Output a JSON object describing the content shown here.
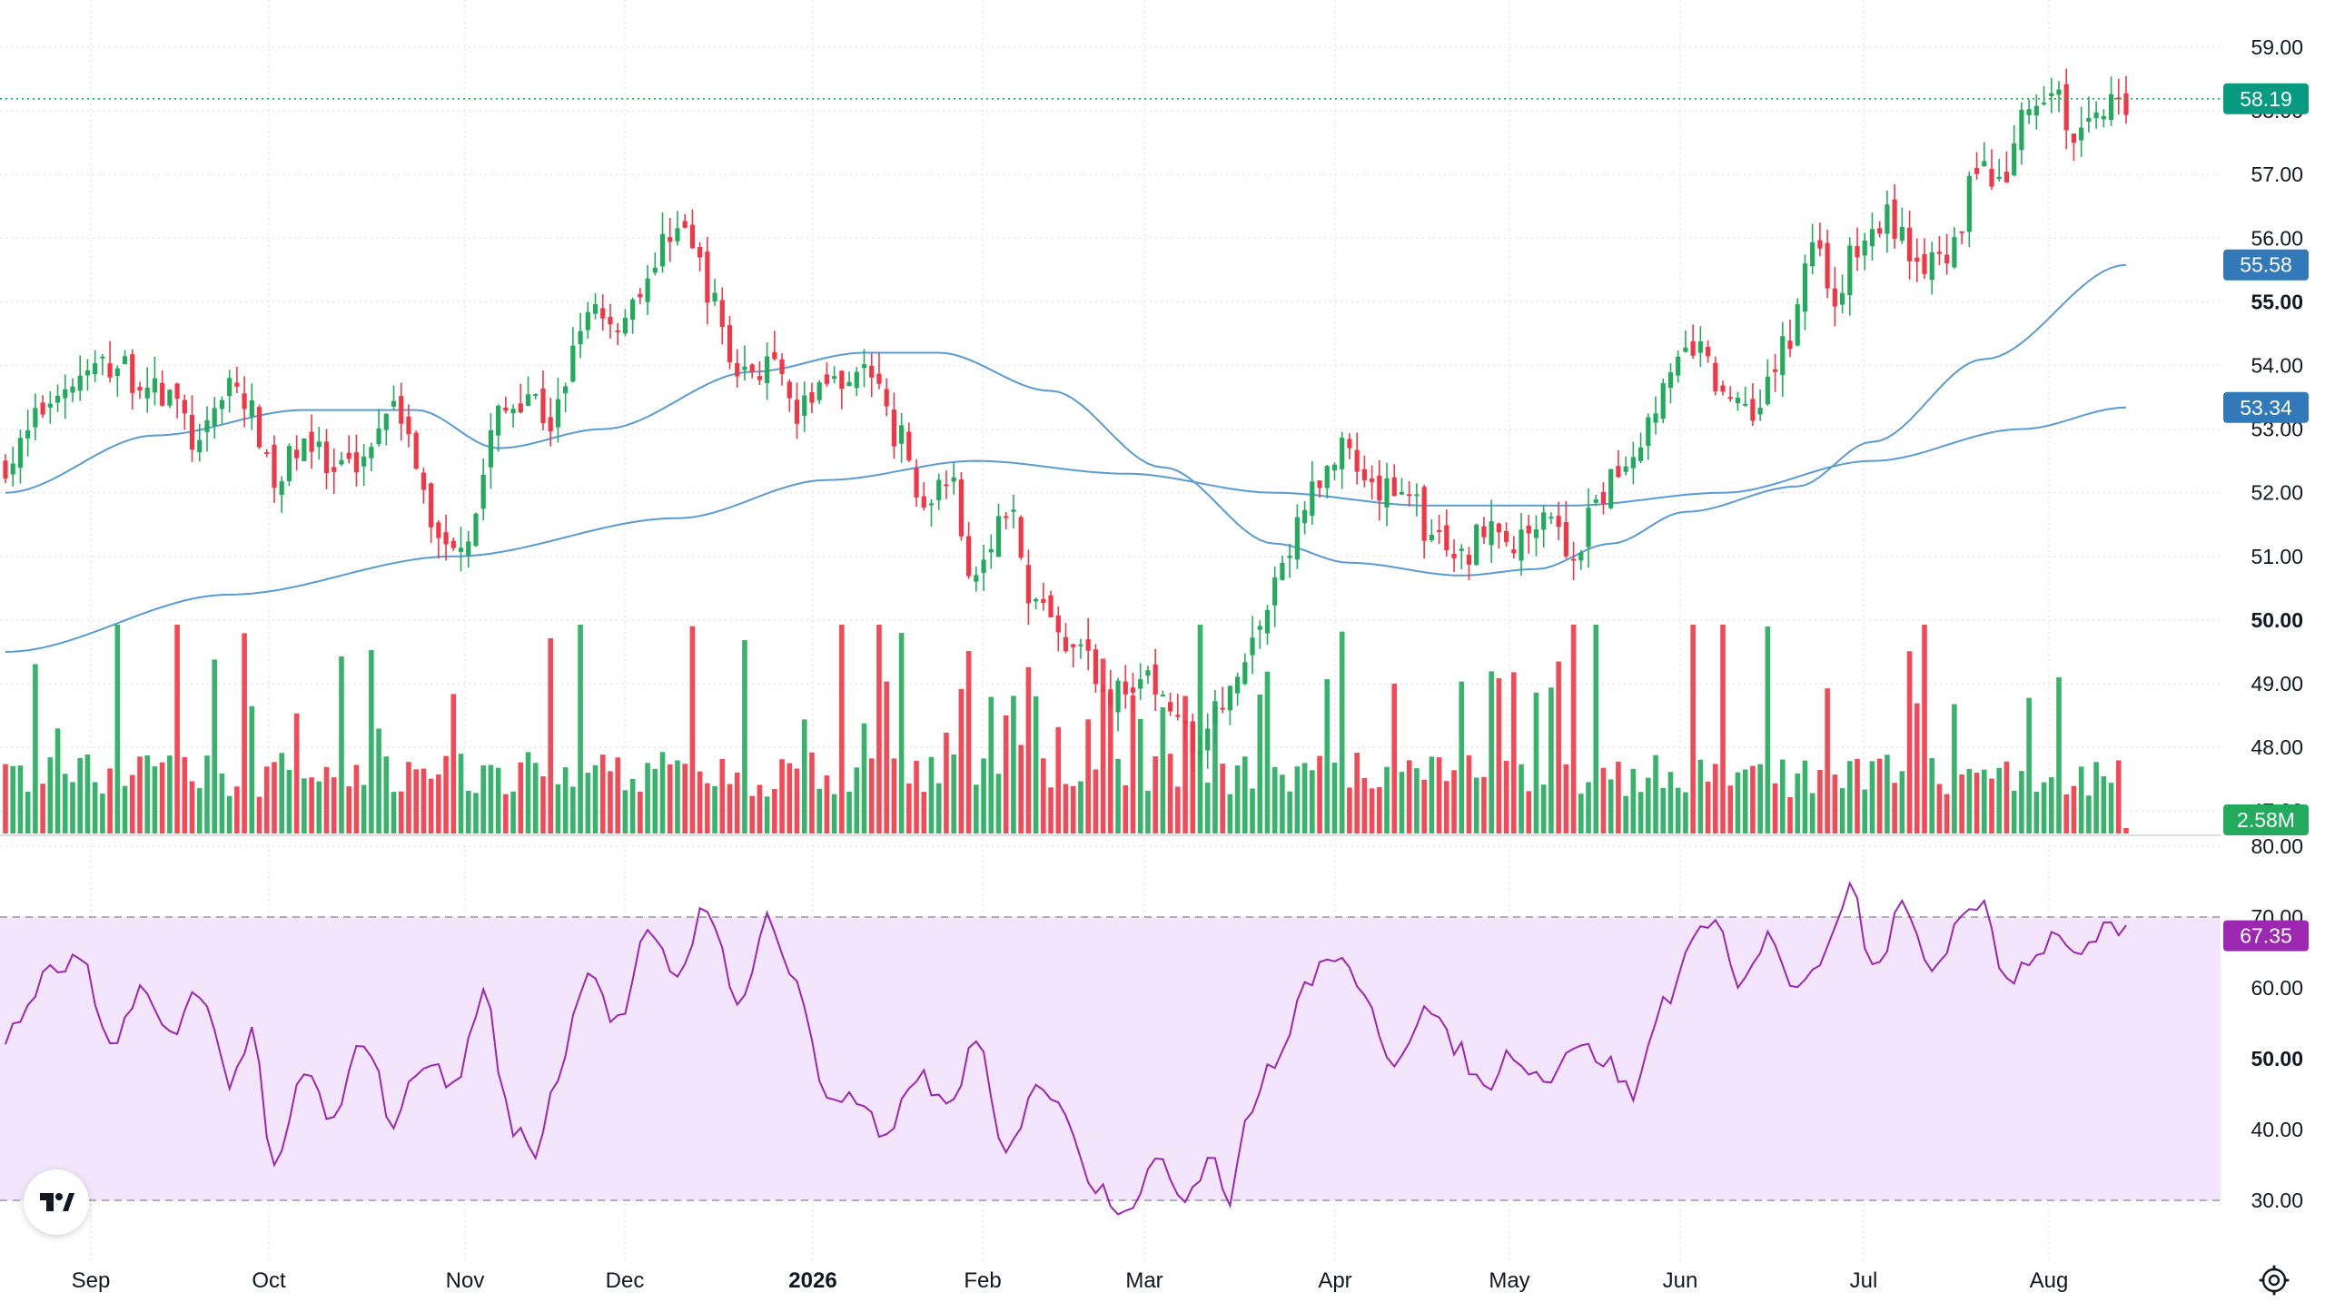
{
  "chart_data": {
    "type": "candlestick",
    "panes": [
      "price",
      "volume",
      "rsi"
    ],
    "price_axis": {
      "ticks": [
        "47.00",
        "48.00",
        "49.00",
        "50.00",
        "51.00",
        "52.00",
        "53.00",
        "54.00",
        "55.00",
        "56.00",
        "57.00",
        "58.00",
        "59.00"
      ],
      "bold_ticks": [
        "50.00",
        "55.00"
      ],
      "range": [
        46.8,
        59.7
      ]
    },
    "rsi_axis": {
      "ticks": [
        "30.00",
        "40.00",
        "50.00",
        "60.00",
        "70.00",
        "80.00"
      ],
      "bold_ticks": [
        "50.00"
      ],
      "range": [
        25.5,
        83
      ],
      "band": [
        30,
        70
      ]
    },
    "time_axis": {
      "labels": [
        "Sep",
        "Oct",
        "Nov",
        "Dec",
        "2026",
        "Feb",
        "Mar",
        "Apr",
        "May",
        "Jun",
        "Jul",
        "Aug"
      ],
      "bold": [
        "2026"
      ]
    },
    "last_price": {
      "label": "58.19",
      "value": 58.19
    },
    "ma_fast": {
      "label": "55.58",
      "value": 55.58
    },
    "ma_slow": {
      "label": "53.34",
      "value": 53.34
    },
    "volume_last": {
      "label": "2.58M"
    },
    "rsi_last": {
      "label": "67.35",
      "value": 67.35
    },
    "close_anchors": [
      [
        0,
        52.5
      ],
      [
        8,
        53.7
      ],
      [
        14,
        54.0
      ],
      [
        22,
        53.5
      ],
      [
        26,
        52.7
      ],
      [
        30,
        53.8
      ],
      [
        33,
        53.2
      ],
      [
        36,
        52.1
      ],
      [
        40,
        52.9
      ],
      [
        44,
        52.2
      ],
      [
        48,
        52.6
      ],
      [
        52,
        53.6
      ],
      [
        56,
        52.0
      ],
      [
        58,
        51.2
      ],
      [
        62,
        51.4
      ],
      [
        66,
        53.2
      ],
      [
        70,
        53.6
      ],
      [
        73,
        53.1
      ],
      [
        78,
        55.0
      ],
      [
        82,
        54.7
      ],
      [
        86,
        55.4
      ],
      [
        90,
        56.3
      ],
      [
        93,
        55.6
      ],
      [
        95,
        54.9
      ],
      [
        98,
        53.9
      ],
      [
        102,
        54.0
      ],
      [
        106,
        53.2
      ],
      [
        110,
        53.8
      ],
      [
        115,
        53.9
      ],
      [
        119,
        53.0
      ],
      [
        123,
        51.8
      ],
      [
        126,
        52.4
      ],
      [
        130,
        50.6
      ],
      [
        134,
        51.8
      ],
      [
        138,
        50.3
      ],
      [
        142,
        49.6
      ],
      [
        146,
        49.2
      ],
      [
        149,
        48.8
      ],
      [
        153,
        49.0
      ],
      [
        157,
        48.4
      ],
      [
        159,
        47.8
      ],
      [
        162,
        48.4
      ],
      [
        166,
        49.5
      ],
      [
        168,
        49.9
      ],
      [
        171,
        50.9
      ],
      [
        175,
        52.0
      ],
      [
        179,
        52.6
      ],
      [
        183,
        51.9
      ],
      [
        187,
        52.2
      ],
      [
        191,
        51.3
      ],
      [
        195,
        50.9
      ],
      [
        199,
        51.7
      ],
      [
        202,
        51.1
      ],
      [
        206,
        51.8
      ],
      [
        210,
        51.0
      ],
      [
        214,
        52.0
      ],
      [
        218,
        52.7
      ],
      [
        222,
        53.6
      ],
      [
        226,
        54.3
      ],
      [
        230,
        53.6
      ],
      [
        234,
        53.4
      ],
      [
        238,
        54.2
      ],
      [
        242,
        56.0
      ],
      [
        245,
        55.1
      ],
      [
        248,
        55.8
      ],
      [
        252,
        56.3
      ],
      [
        256,
        55.7
      ],
      [
        260,
        55.5
      ],
      [
        264,
        57.2
      ],
      [
        267,
        56.7
      ],
      [
        270,
        57.8
      ],
      [
        274,
        58.3
      ],
      [
        277,
        57.6
      ],
      [
        281,
        58.1
      ],
      [
        284,
        58.19
      ]
    ],
    "ma_fast_anchors": [
      [
        0,
        52.0
      ],
      [
        20,
        52.9
      ],
      [
        40,
        53.3
      ],
      [
        55,
        53.3
      ],
      [
        66,
        52.7
      ],
      [
        80,
        53.0
      ],
      [
        100,
        53.9
      ],
      [
        115,
        54.2
      ],
      [
        125,
        54.2
      ],
      [
        140,
        53.6
      ],
      [
        155,
        52.4
      ],
      [
        170,
        51.2
      ],
      [
        180,
        50.9
      ],
      [
        195,
        50.7
      ],
      [
        205,
        50.8
      ],
      [
        215,
        51.2
      ],
      [
        225,
        51.7
      ],
      [
        240,
        52.1
      ],
      [
        250,
        52.8
      ],
      [
        265,
        54.1
      ],
      [
        284,
        55.58
      ]
    ],
    "ma_slow_anchors": [
      [
        0,
        49.5
      ],
      [
        30,
        50.4
      ],
      [
        60,
        51.0
      ],
      [
        90,
        51.6
      ],
      [
        110,
        52.2
      ],
      [
        130,
        52.5
      ],
      [
        150,
        52.3
      ],
      [
        170,
        52.0
      ],
      [
        190,
        51.8
      ],
      [
        210,
        51.8
      ],
      [
        230,
        52.0
      ],
      [
        250,
        52.5
      ],
      [
        270,
        53.0
      ],
      [
        284,
        53.34
      ]
    ],
    "rsi_anchors": [
      [
        0,
        53
      ],
      [
        6,
        62
      ],
      [
        10,
        64
      ],
      [
        14,
        51
      ],
      [
        18,
        60
      ],
      [
        22,
        53
      ],
      [
        26,
        60
      ],
      [
        30,
        47
      ],
      [
        33,
        53
      ],
      [
        36,
        34
      ],
      [
        40,
        48
      ],
      [
        44,
        41
      ],
      [
        48,
        53
      ],
      [
        52,
        41
      ],
      [
        56,
        50
      ],
      [
        60,
        46
      ],
      [
        64,
        59
      ],
      [
        68,
        40
      ],
      [
        71,
        37
      ],
      [
        74,
        48
      ],
      [
        78,
        63
      ],
      [
        82,
        55
      ],
      [
        86,
        67
      ],
      [
        90,
        62
      ],
      [
        94,
        72
      ],
      [
        98,
        57
      ],
      [
        102,
        70
      ],
      [
        106,
        60
      ],
      [
        110,
        45
      ],
      [
        114,
        44
      ],
      [
        118,
        38
      ],
      [
        122,
        48
      ],
      [
        126,
        43
      ],
      [
        130,
        52
      ],
      [
        134,
        36
      ],
      [
        138,
        47
      ],
      [
        142,
        42
      ],
      [
        146,
        32
      ],
      [
        150,
        29
      ],
      [
        154,
        35
      ],
      [
        158,
        31
      ],
      [
        162,
        37
      ],
      [
        164,
        29
      ],
      [
        166,
        42
      ],
      [
        170,
        49
      ],
      [
        174,
        60
      ],
      [
        178,
        65
      ],
      [
        182,
        58
      ],
      [
        186,
        50
      ],
      [
        190,
        57
      ],
      [
        194,
        52
      ],
      [
        198,
        46
      ],
      [
        202,
        51
      ],
      [
        206,
        47
      ],
      [
        210,
        52
      ],
      [
        214,
        50
      ],
      [
        218,
        45
      ],
      [
        222,
        58
      ],
      [
        226,
        66
      ],
      [
        229,
        71
      ],
      [
        232,
        60
      ],
      [
        236,
        67
      ],
      [
        240,
        59
      ],
      [
        244,
        65
      ],
      [
        247,
        75
      ],
      [
        250,
        62
      ],
      [
        254,
        71
      ],
      [
        258,
        63
      ],
      [
        262,
        69
      ],
      [
        265,
        72
      ],
      [
        268,
        61
      ],
      [
        272,
        65
      ],
      [
        275,
        68
      ],
      [
        278,
        64
      ],
      [
        281,
        68
      ],
      [
        284,
        67.35
      ]
    ],
    "bars": 285,
    "up_color": "#22ab5c",
    "down_color": "#f23645",
    "ma_color": "#5a9bd1",
    "rsi_color": "#9c27b0",
    "rsi_band_color": "#f3e5fb",
    "grid": true
  },
  "icons": {
    "settings": "settings-gear-icon",
    "logo": "tradingview-logo-icon"
  }
}
